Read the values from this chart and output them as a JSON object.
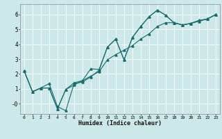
{
  "xlabel": "Humidex (Indice chaleur)",
  "bg_color": "#cce8e8",
  "line_color": "#1a6b6b",
  "grid_color": "#ffffff",
  "xlim": [
    -0.5,
    23.5
  ],
  "ylim": [
    -0.7,
    6.7
  ],
  "xticks": [
    0,
    1,
    2,
    3,
    4,
    5,
    6,
    7,
    8,
    9,
    10,
    11,
    12,
    13,
    14,
    15,
    16,
    17,
    18,
    19,
    20,
    21,
    22,
    23
  ],
  "yticks": [
    0,
    1,
    2,
    3,
    4,
    5,
    6
  ],
  "ytick_labels": [
    "-0",
    "1",
    "2",
    "3",
    "4",
    "5",
    "6"
  ],
  "line1_x": [
    0,
    1,
    2,
    3,
    4,
    5,
    6,
    7,
    8,
    9,
    10,
    11,
    12,
    13,
    14,
    15,
    16,
    17,
    18,
    19,
    20,
    21,
    22,
    23
  ],
  "line1_y": [
    2.2,
    0.8,
    1.05,
    1.35,
    -0.2,
    -0.48,
    1.35,
    1.45,
    1.8,
    2.25,
    3.8,
    4.35,
    2.95,
    4.45,
    5.2,
    5.85,
    6.3,
    5.95,
    5.45,
    5.3,
    5.4,
    5.6,
    5.7,
    6.0
  ],
  "line2_x": [
    0,
    1,
    2,
    3,
    4,
    5,
    6,
    7,
    8,
    9,
    10,
    11,
    12,
    13,
    14,
    15,
    16,
    17,
    18,
    19,
    20,
    21,
    22,
    23
  ],
  "line2_y": [
    2.2,
    0.8,
    1.05,
    1.05,
    -0.35,
    0.95,
    1.4,
    1.55,
    2.35,
    2.3,
    3.8,
    4.35,
    2.95,
    4.45,
    5.2,
    5.85,
    6.3,
    5.95,
    5.45,
    5.3,
    5.4,
    5.6,
    5.7,
    6.0
  ],
  "line3_x": [
    0,
    1,
    2,
    3,
    4,
    5,
    6,
    7,
    8,
    9,
    10,
    11,
    12,
    13,
    14,
    15,
    16,
    17,
    18,
    19,
    20,
    21,
    22,
    23
  ],
  "line3_y": [
    2.2,
    0.8,
    1.05,
    1.05,
    -0.35,
    0.95,
    1.25,
    1.55,
    1.85,
    2.15,
    2.95,
    3.3,
    3.6,
    3.9,
    4.35,
    4.7,
    5.2,
    5.45,
    5.45,
    5.3,
    5.4,
    5.55,
    5.7,
    6.0
  ]
}
